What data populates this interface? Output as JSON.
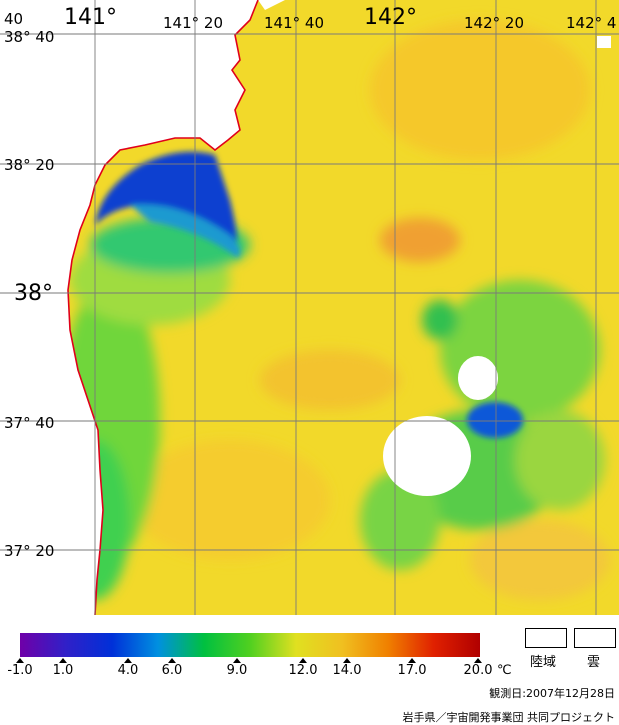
{
  "map": {
    "lat_labels": [
      "38° 40",
      "38° 20",
      "38°",
      "37° 40",
      "37° 20"
    ],
    "lon_labels": [
      "141° 20",
      "141° 40",
      "142° 20",
      "142° 4"
    ],
    "lon_labels_big": [
      "141°",
      "142°"
    ],
    "corner_label": "40",
    "colors": {
      "ocean_base": "#f2d92a",
      "land": "#ffffff",
      "cloud": "#ffffff",
      "coastline": "#e0001a",
      "grid": "#7a7a7a"
    }
  },
  "legend": {
    "ticks": [
      "-1.0",
      "1.0",
      "4.0",
      "6.0",
      "9.0",
      "12.0",
      "14.0",
      "17.0",
      "20.0"
    ],
    "unit": "℃",
    "land_label": "陸域",
    "cloud_label": "雲",
    "gradient_stops": [
      "#6f00a8",
      "#3020c8",
      "#0030d8",
      "#0090e0",
      "#00c040",
      "#50d020",
      "#e0e020",
      "#f0c020",
      "#f08000",
      "#e02000",
      "#b00000"
    ]
  },
  "footer": {
    "date": "観測日:2007年12月28日",
    "credit": "岩手県／宇宙開発事業団  共同プロジェクト"
  }
}
